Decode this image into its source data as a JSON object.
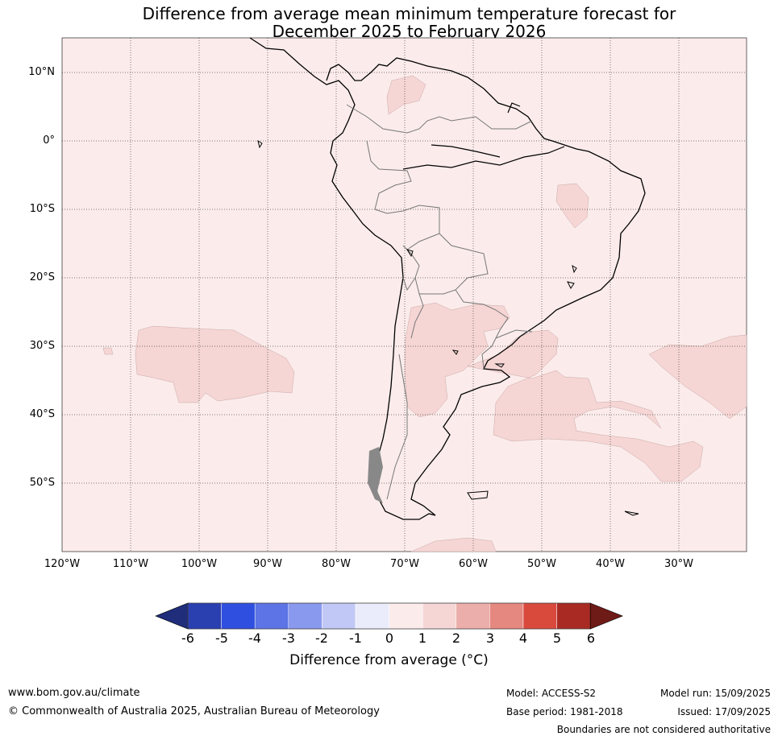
{
  "title": {
    "line1": "Difference from average mean minimum temperature forecast for",
    "line2": "December 2025 to February 2026"
  },
  "map": {
    "background_color": "#fbeceb",
    "anomaly_1_2_color": "#f5d6d5",
    "lat_labels": [
      "10°N",
      "0°",
      "10°S",
      "20°S",
      "30°S",
      "40°S",
      "50°S"
    ],
    "lon_labels": [
      "120°W",
      "110°W",
      "100°W",
      "90°W",
      "80°W",
      "70°W",
      "60°W",
      "50°W",
      "40°W",
      "30°W"
    ]
  },
  "colorbar": {
    "ticks": [
      "-6",
      "-5",
      "-4",
      "-3",
      "-2",
      "-1",
      "0",
      "1",
      "2",
      "3",
      "4",
      "5",
      "6"
    ],
    "colors": [
      "#1f2d7a",
      "#2a3fb0",
      "#2f4fe0",
      "#5c74e6",
      "#8899ee",
      "#c2c8f5",
      "#eaecfb",
      "#fbeceb",
      "#f5d6d5",
      "#ecaeaa",
      "#e58880",
      "#d94a3d",
      "#a82a22",
      "#6e1a16"
    ],
    "label": "Difference from average (°C)"
  },
  "footer": {
    "website": "www.bom.gov.au/climate",
    "copyright": "© Commonwealth of Australia 2025, Australian Bureau of Meteorology",
    "model": "Model: ACCESS-S2",
    "base_period": "Base period: 1981-2018",
    "model_run": "Model run: 15/09/2025",
    "issued": "Issued: 17/09/2025",
    "disclaimer": "Boundaries are not considered authoritative"
  }
}
